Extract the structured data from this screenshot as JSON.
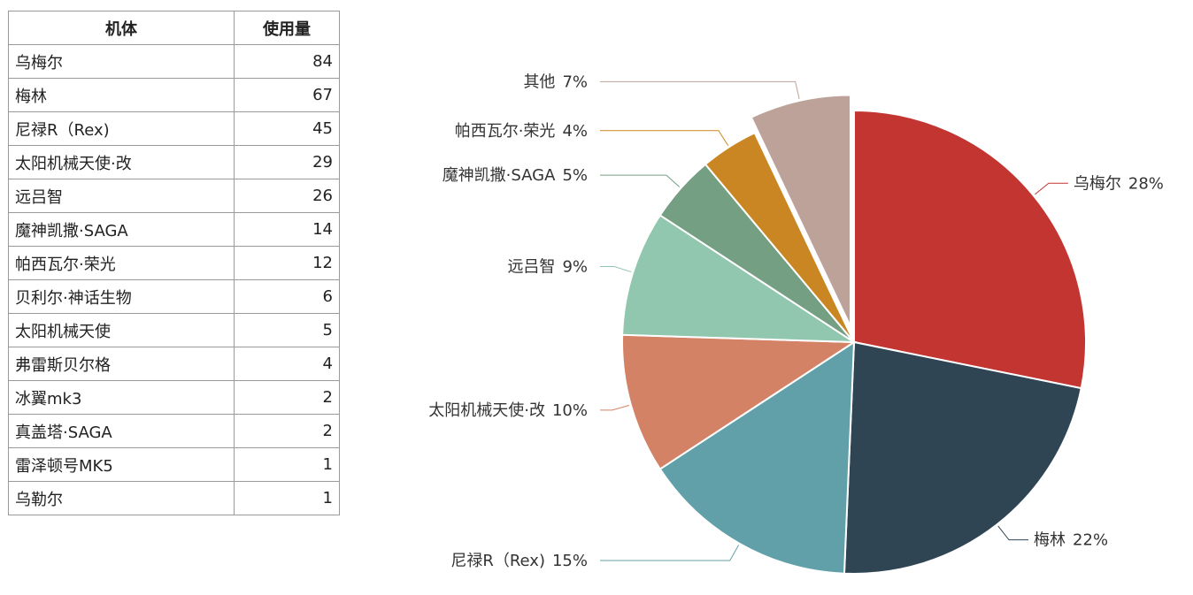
{
  "table": {
    "headers": {
      "name": "机体",
      "usage": "使用量"
    },
    "rows": [
      {
        "name": "乌梅尔",
        "usage": "84"
      },
      {
        "name": "梅林",
        "usage": "67"
      },
      {
        "name": "尼禄R（Rex)",
        "usage": "45"
      },
      {
        "name": "太阳机械天使·改",
        "usage": "29"
      },
      {
        "name": "远吕智",
        "usage": "26"
      },
      {
        "name": "魔神凯撒·SAGA",
        "usage": "14"
      },
      {
        "name": "帕西瓦尔·荣光",
        "usage": "12"
      },
      {
        "name": "贝利尔·神话生物",
        "usage": "6"
      },
      {
        "name": "太阳机械天使",
        "usage": "5"
      },
      {
        "name": "弗雷斯贝尔格",
        "usage": "4"
      },
      {
        "name": "冰翼mk3",
        "usage": "2"
      },
      {
        "name": "真盖塔·SAGA",
        "usage": "2"
      },
      {
        "name": "雷泽顿号MK5",
        "usage": "1"
      },
      {
        "name": "乌勒尔",
        "usage": "1"
      }
    ]
  },
  "chart_data": {
    "type": "pie",
    "slices": [
      {
        "label": "乌梅尔",
        "value": 84,
        "percent_label": "28%",
        "color": "#c23531"
      },
      {
        "label": "梅林",
        "value": 67,
        "percent_label": "22%",
        "color": "#2f4554"
      },
      {
        "label": "尼禄R（Rex)",
        "value": 45,
        "percent_label": "15%",
        "color": "#61a0a8"
      },
      {
        "label": "太阳机械天使·改",
        "value": 29,
        "percent_label": "10%",
        "color": "#d48265"
      },
      {
        "label": "远吕智",
        "value": 26,
        "percent_label": "9%",
        "color": "#91c7ae"
      },
      {
        "label": "魔神凯撒·SAGA",
        "value": 14,
        "percent_label": "5%",
        "color": "#749f83"
      },
      {
        "label": "帕西瓦尔·荣光",
        "value": 12,
        "percent_label": "4%",
        "color": "#ca8622"
      },
      {
        "label": "其他",
        "value": 21,
        "percent_label": "7%",
        "color": "#bda29a",
        "exploded": true
      }
    ]
  }
}
